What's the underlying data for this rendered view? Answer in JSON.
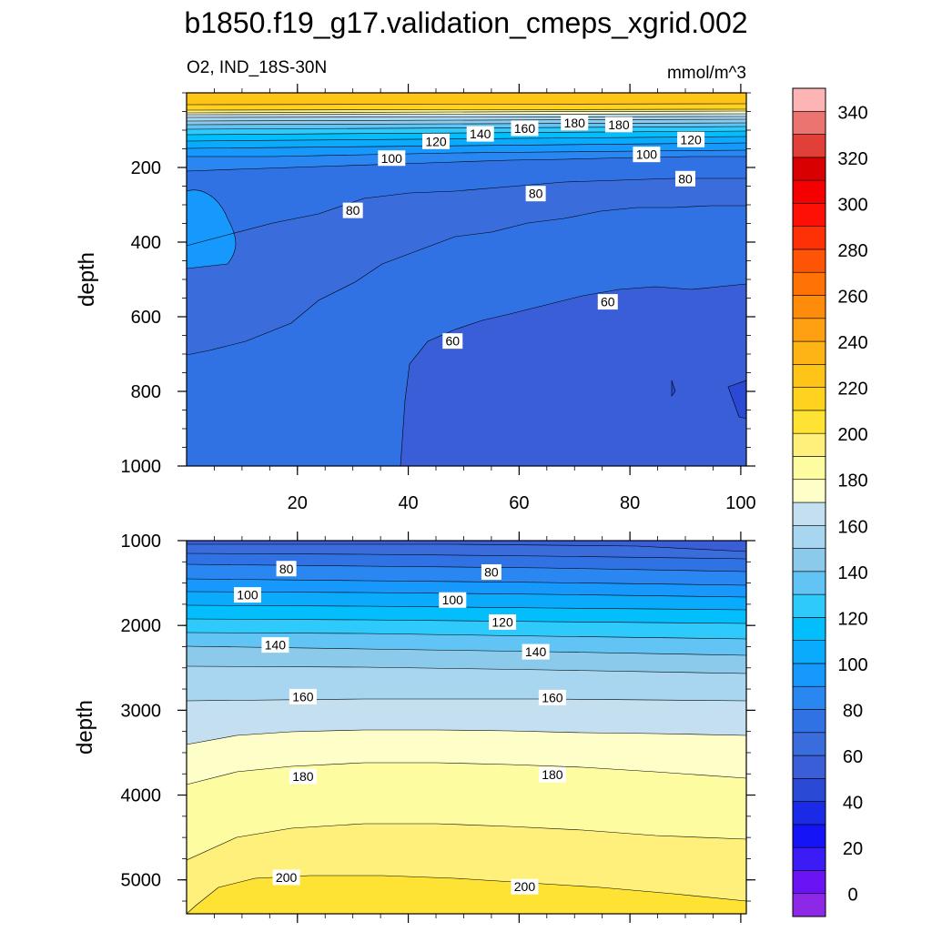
{
  "title": "b1850.f19_g17.validation_cmeps_xgrid.002",
  "subtitle_left": "O2, IND_18S-30N",
  "subtitle_right": "mmol/m^3",
  "colorbar": {
    "tick_labels": [
      "0",
      "20",
      "40",
      "60",
      "80",
      "100",
      "120",
      "140",
      "160",
      "180",
      "200",
      "220",
      "240",
      "260",
      "280",
      "300",
      "320",
      "340"
    ],
    "colors": [
      "#8c28e6",
      "#6a14f6",
      "#3c1cf6",
      "#1414f6",
      "#1a2ae6",
      "#2a4ad6",
      "#3a5ed8",
      "#3a6cdc",
      "#3072e4",
      "#2a86f0",
      "#1698fc",
      "#0aaafc",
      "#02befc",
      "#2ecafc",
      "#62c4f4",
      "#8ccaec",
      "#a8d6f0",
      "#c4e0f0",
      "#fefec8",
      "#fefca0",
      "#fef07a",
      "#fee234",
      "#fed21e",
      "#fec418",
      "#feb414",
      "#fea012",
      "#fe8c0a",
      "#fe7206",
      "#fe5406",
      "#fe3006",
      "#fe1006",
      "#f40000",
      "#d80000",
      "#e04038",
      "#ec7470",
      "#fcb4b4"
    ]
  },
  "chart_data": [
    {
      "type": "contour",
      "panel": "upper",
      "ylabel": "depth",
      "xlim": [
        0,
        101
      ],
      "ylim": [
        1000,
        0
      ],
      "x_ticks": [
        20,
        40,
        60,
        80,
        100
      ],
      "y_ticks": [
        200,
        400,
        600,
        800,
        1000
      ],
      "contour_levels": [
        60,
        70,
        80,
        90,
        100,
        110,
        120,
        130,
        140,
        150,
        160,
        170,
        180,
        190,
        200
      ],
      "contour_labels": [
        {
          "text": "180",
          "x": 70,
          "y": 80
        },
        {
          "text": "180",
          "x": 78,
          "y": 85
        },
        {
          "text": "160",
          "x": 61,
          "y": 95
        },
        {
          "text": "140",
          "x": 53,
          "y": 110
        },
        {
          "text": "120",
          "x": 45,
          "y": 130
        },
        {
          "text": "120",
          "x": 91,
          "y": 125
        },
        {
          "text": "100",
          "x": 37,
          "y": 175
        },
        {
          "text": "100",
          "x": 83,
          "y": 165
        },
        {
          "text": "80",
          "x": 30,
          "y": 315
        },
        {
          "text": "80",
          "x": 63,
          "y": 270
        },
        {
          "text": "80",
          "x": 90,
          "y": 230
        },
        {
          "text": "60",
          "x": 48,
          "y": 665
        },
        {
          "text": "60",
          "x": 76,
          "y": 560
        }
      ]
    },
    {
      "type": "contour",
      "panel": "lower",
      "ylabel": "depth",
      "xlim": [
        0,
        101
      ],
      "ylim": [
        5400,
        1000
      ],
      "y_ticks": [
        1000,
        2000,
        3000,
        4000,
        5000
      ],
      "contour_levels": [
        70,
        80,
        90,
        100,
        110,
        120,
        130,
        140,
        150,
        160,
        170,
        180,
        190,
        200
      ],
      "contour_labels": [
        {
          "text": "80",
          "x": 18,
          "y": 1330
        },
        {
          "text": "80",
          "x": 55,
          "y": 1370
        },
        {
          "text": "100",
          "x": 11,
          "y": 1640
        },
        {
          "text": "100",
          "x": 48,
          "y": 1700
        },
        {
          "text": "120",
          "x": 57,
          "y": 1960
        },
        {
          "text": "140",
          "x": 16,
          "y": 2230
        },
        {
          "text": "140",
          "x": 63,
          "y": 2310
        },
        {
          "text": "160",
          "x": 21,
          "y": 2840
        },
        {
          "text": "160",
          "x": 66,
          "y": 2850
        },
        {
          "text": "180",
          "x": 21,
          "y": 3780
        },
        {
          "text": "180",
          "x": 66,
          "y": 3760
        },
        {
          "text": "200",
          "x": 18,
          "y": 4970
        },
        {
          "text": "200",
          "x": 61,
          "y": 5080
        }
      ]
    }
  ]
}
